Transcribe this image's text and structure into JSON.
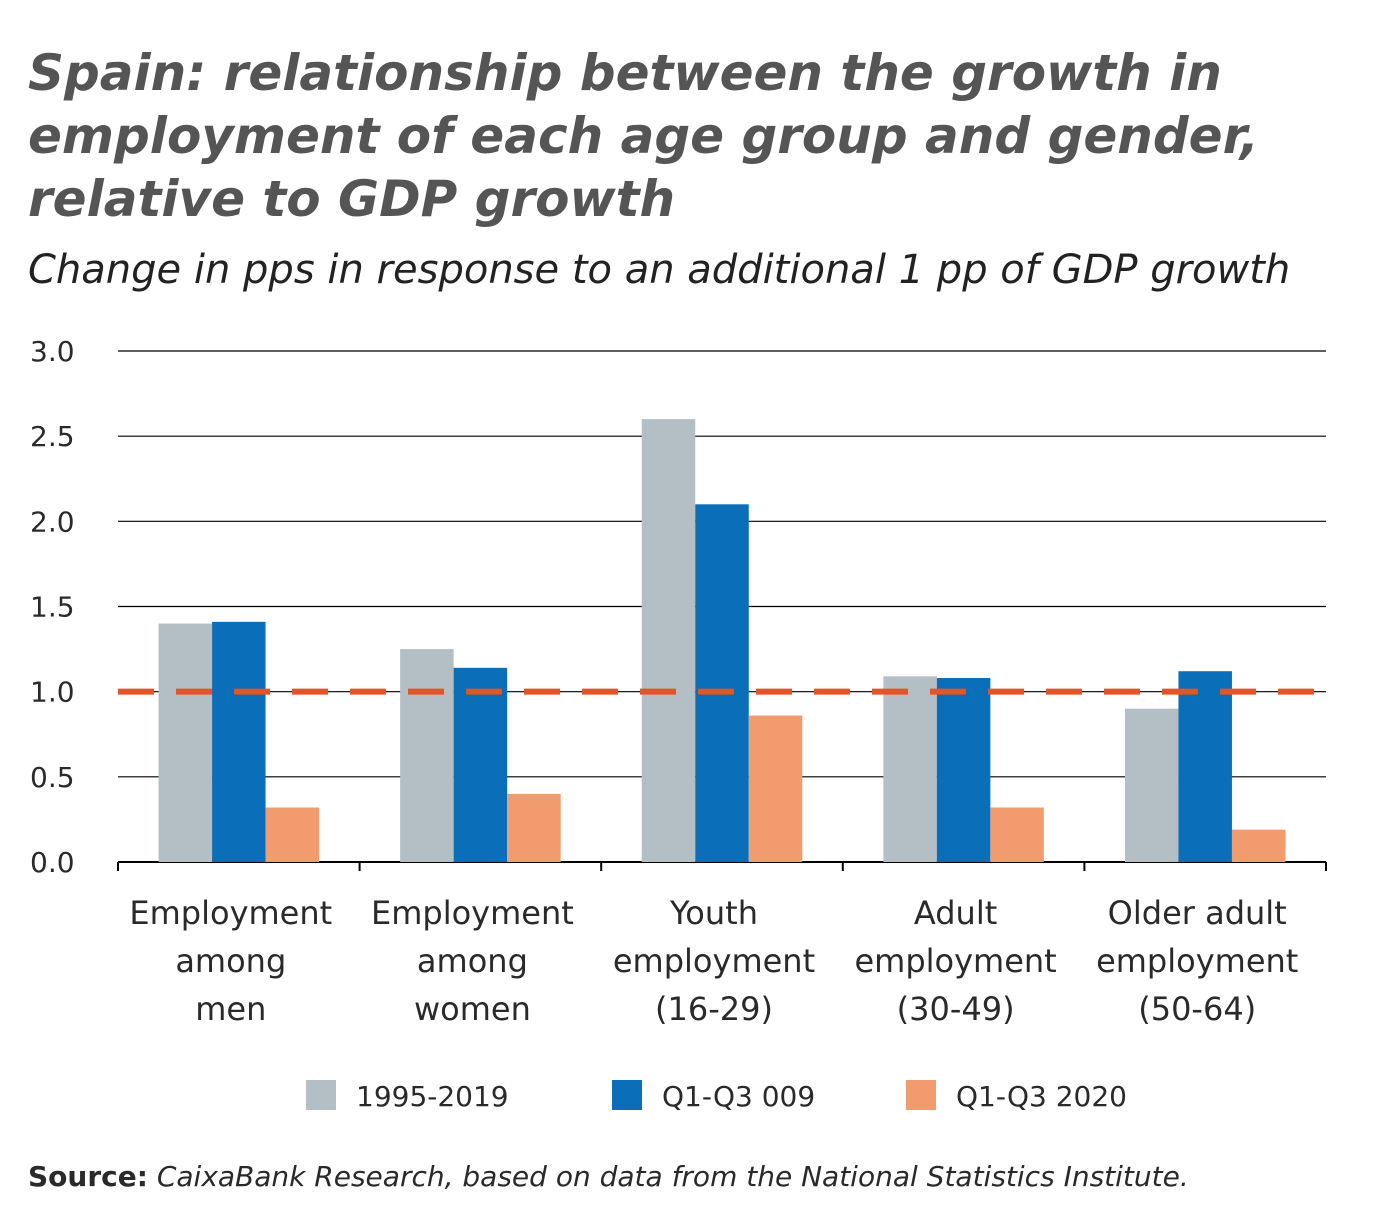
{
  "chart_data": {
    "type": "bar",
    "title": [
      "Spain: relationship between the growth in",
      "employment of each age group and gender,",
      "relative to GDP growth"
    ],
    "subtitle": "Change in pps in response to an additional 1 pp of GDP growth",
    "categories": [
      [
        "Employment",
        "among",
        "men"
      ],
      [
        "Employment",
        "among",
        "women"
      ],
      [
        "Youth",
        "employment",
        "(16-29)"
      ],
      [
        "Adult",
        "employment",
        "(30-49)"
      ],
      [
        "Older adult",
        "employment",
        "(50-64)"
      ]
    ],
    "series": [
      {
        "name": "1995-2019",
        "color": "#b4bfc5",
        "values": [
          1.4,
          1.25,
          2.6,
          1.09,
          0.9
        ]
      },
      {
        "name": "Q1-Q3 009",
        "color": "#0a6eb8",
        "values": [
          1.41,
          1.14,
          2.1,
          1.08,
          1.12
        ]
      },
      {
        "name": "Q1-Q3 2020",
        "color": "#f29b6e",
        "values": [
          0.32,
          0.4,
          0.86,
          0.32,
          0.19
        ]
      }
    ],
    "reference_line": 1.0,
    "reference_color": "#e0562a",
    "ylim": [
      0,
      3
    ],
    "yticks": [
      {
        "value": 0,
        "label": "0.0"
      },
      0.5,
      {
        "value": 1,
        "label": "1.0"
      },
      1.5,
      {
        "value": 2,
        "label": "2.0"
      },
      2.5,
      {
        "value": 3,
        "label": "3.0"
      }
    ],
    "grid": true,
    "source_label": "Source:",
    "source": "CaixaBank Research, based on data from the National Statistics Institute."
  }
}
